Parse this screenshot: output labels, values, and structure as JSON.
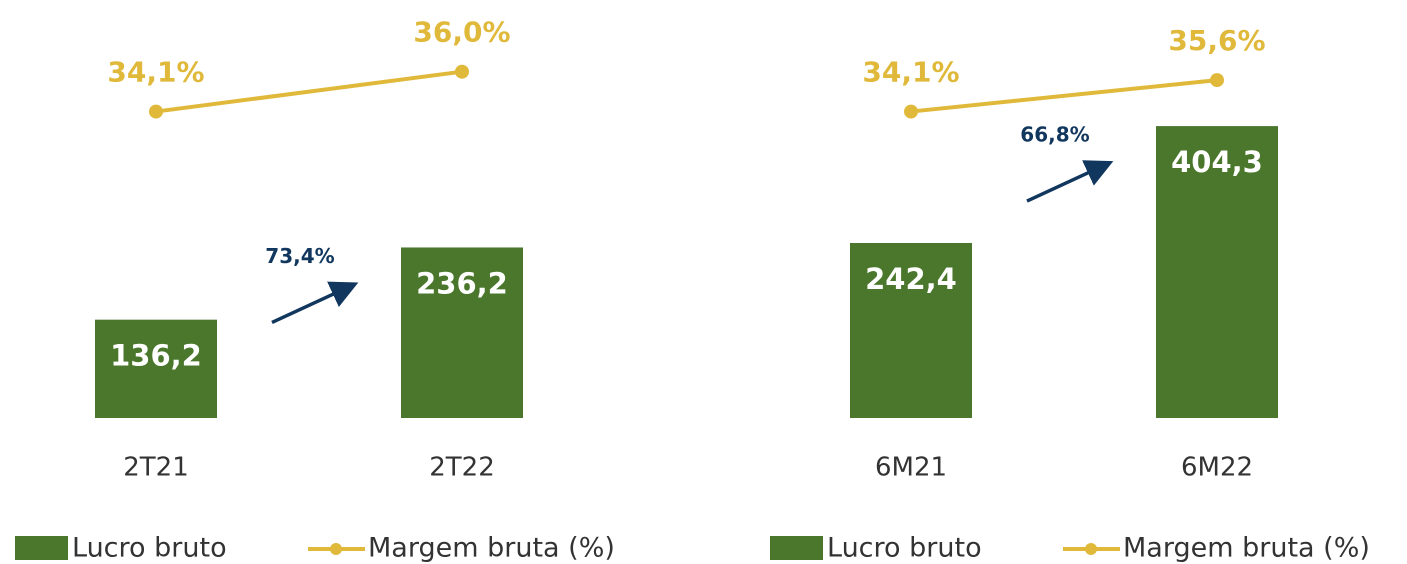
{
  "chart_data": [
    {
      "type": "bar-line",
      "categories": [
        "2T21",
        "2T22"
      ],
      "ylim": [
        0,
        500
      ],
      "y2lim": [
        19.5,
        36.7
      ],
      "series": [
        {
          "name": "Lucro bruto",
          "type": "bar",
          "color": "#4a772b",
          "values": [
            136.2,
            236.2
          ],
          "value_labels": [
            "136,2",
            "236,2"
          ]
        },
        {
          "name": "Margem bruta (%)",
          "type": "line",
          "axis": "y2",
          "color": "#e0b93b",
          "values": [
            34.1,
            36.0
          ],
          "value_labels": [
            "34,1%",
            "36,0%"
          ]
        }
      ],
      "annotations": [
        "73,4%"
      ],
      "annotation_color": "#12375e"
    },
    {
      "type": "bar-line",
      "categories": [
        "6M21",
        "6M22"
      ],
      "ylim": [
        0,
        500
      ],
      "y2lim": [
        19.5,
        36.7
      ],
      "series": [
        {
          "name": "Lucro bruto",
          "type": "bar",
          "color": "#4a772b",
          "values": [
            242.4,
            404.3
          ],
          "value_labels": [
            "242,4",
            "404,3"
          ]
        },
        {
          "name": "Margem bruta (%)",
          "type": "line",
          "axis": "y2",
          "color": "#e0b93b",
          "values": [
            34.1,
            35.6
          ],
          "value_labels": [
            "34,1%",
            "35,6%"
          ]
        }
      ],
      "annotations": [
        "66,8%"
      ],
      "annotation_color": "#12375e"
    }
  ]
}
